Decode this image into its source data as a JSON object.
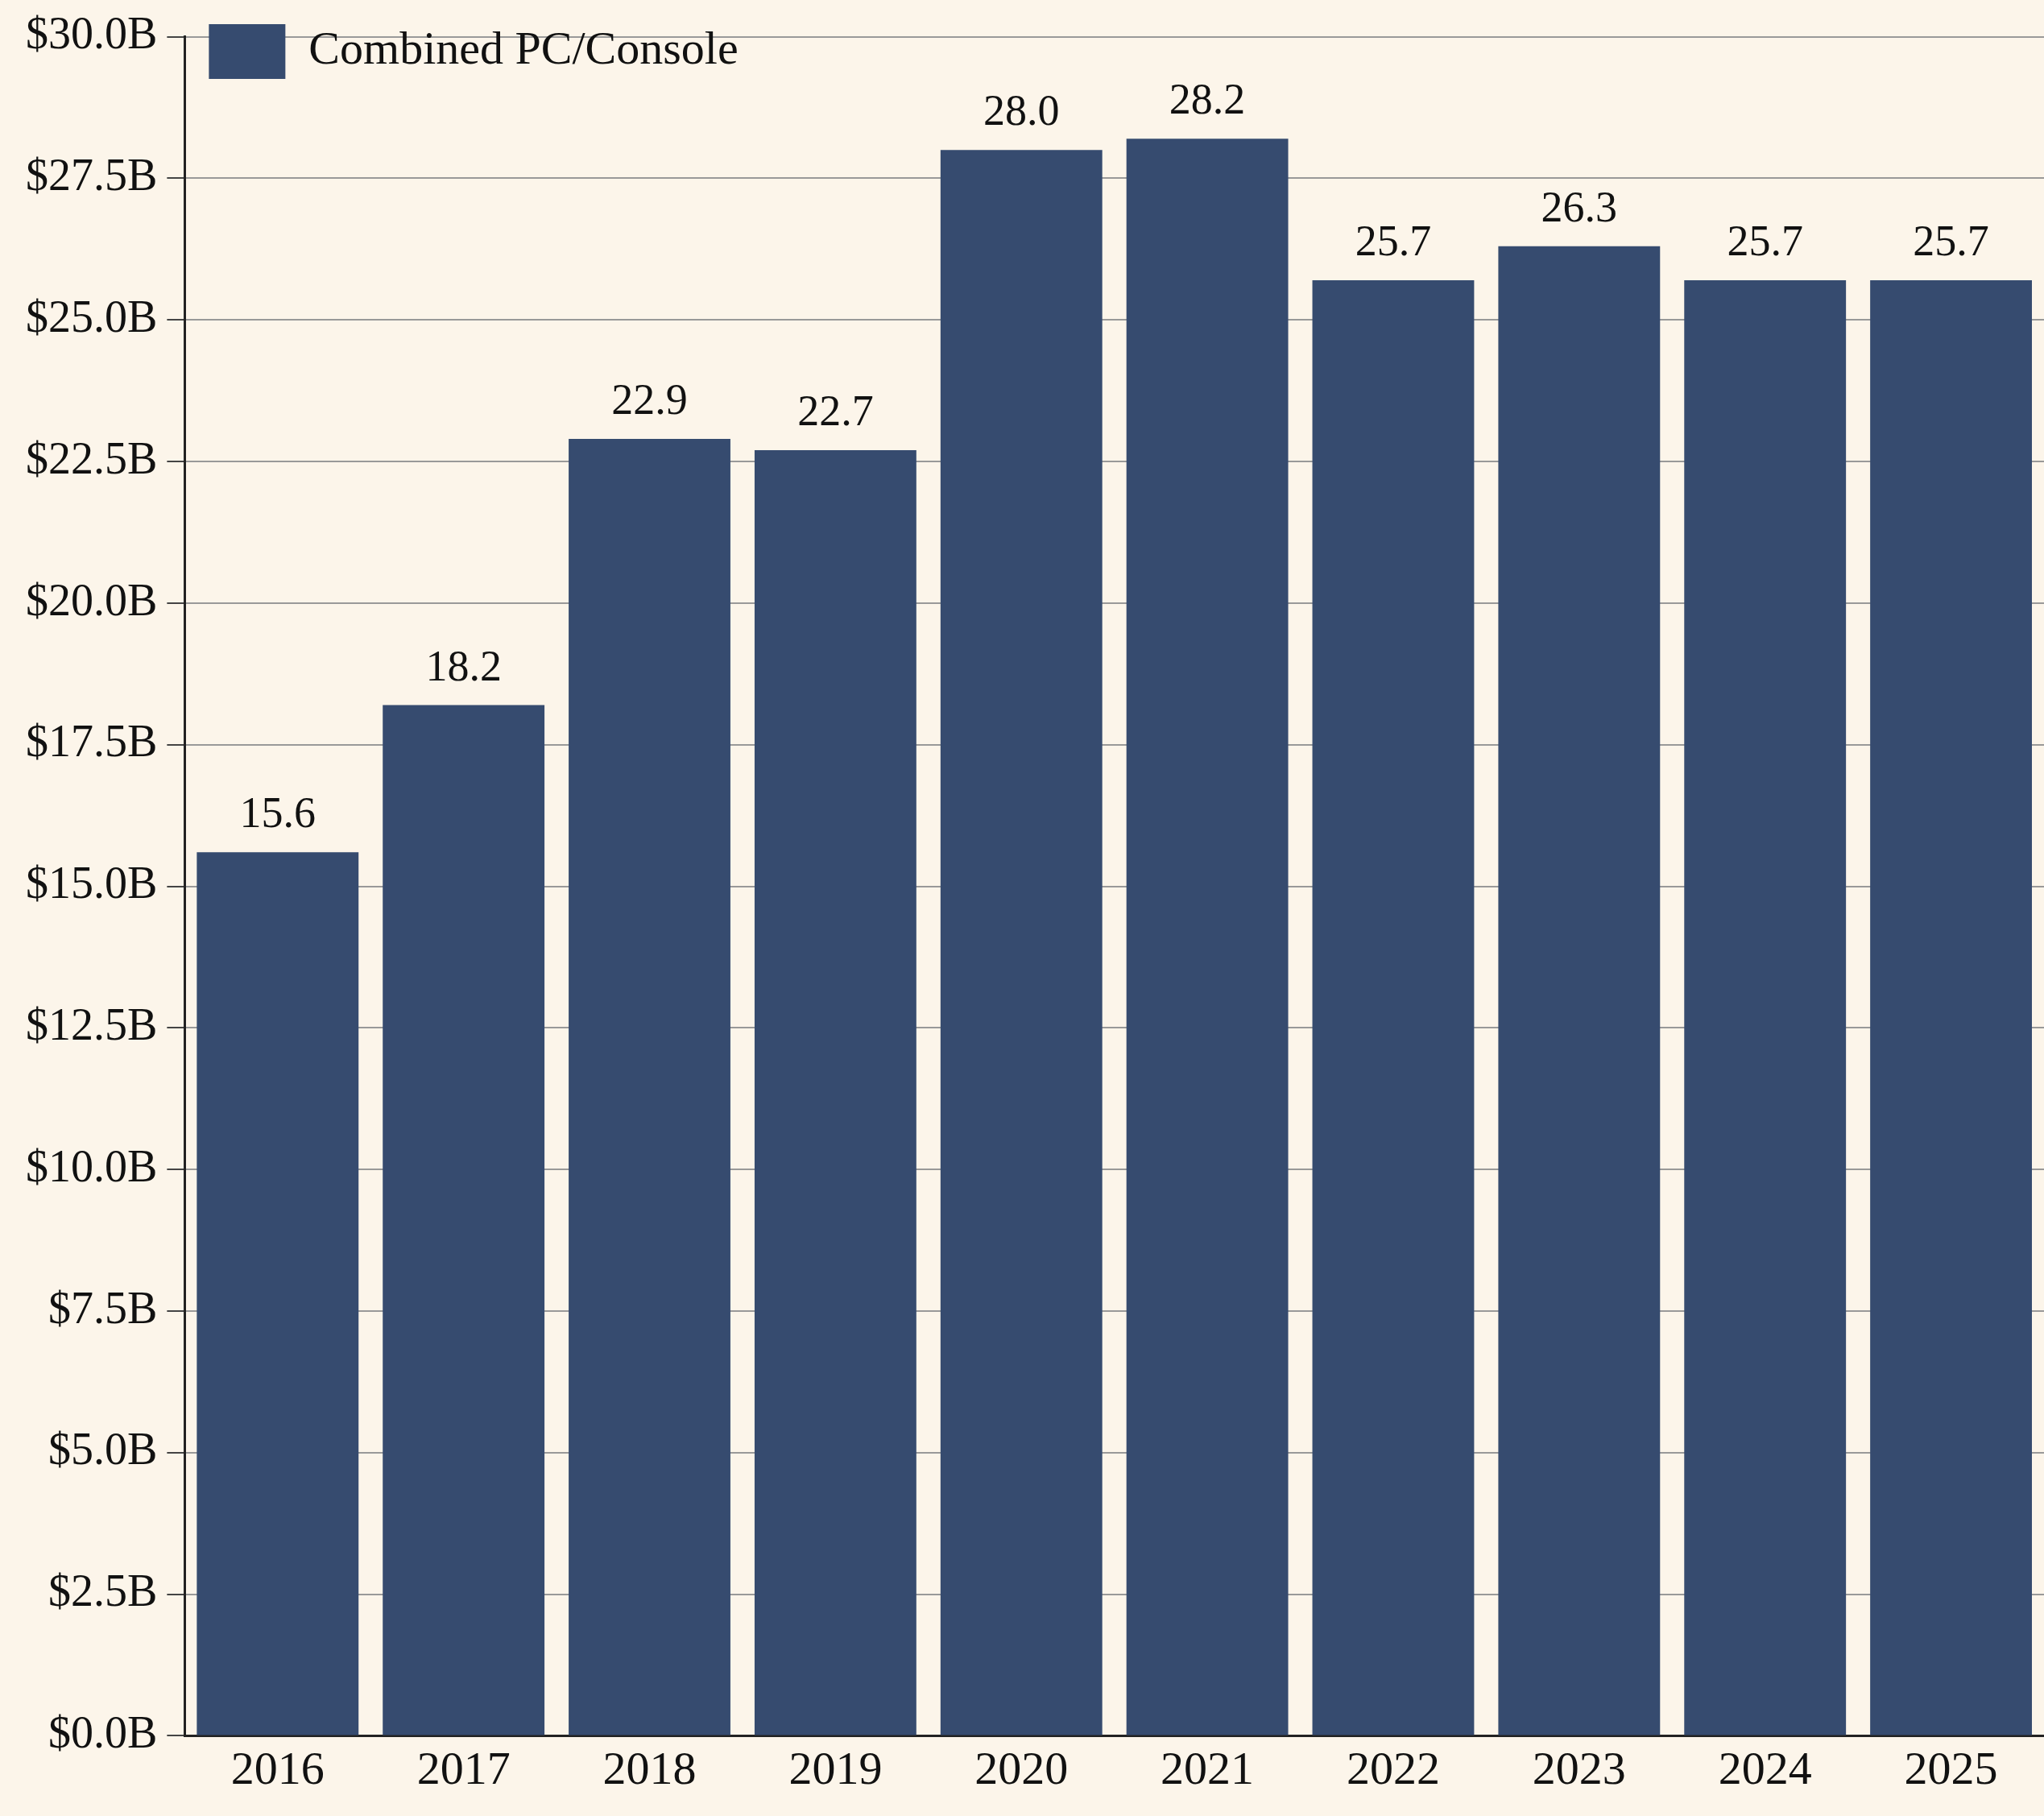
{
  "chart_data": {
    "type": "bar",
    "categories": [
      "2016",
      "2017",
      "2018",
      "2019",
      "2020",
      "2021",
      "2022",
      "2023",
      "2024",
      "2025"
    ],
    "series": [
      {
        "name": "Combined PC/Console",
        "color": "#364b6f",
        "values": [
          15.6,
          18.2,
          22.9,
          22.7,
          28.0,
          28.2,
          25.7,
          26.3,
          25.7,
          25.7
        ],
        "value_labels": [
          "15.6",
          "18.2",
          "22.9",
          "22.7",
          "28.0",
          "28.2",
          "25.7",
          "26.3",
          "25.7",
          "25.7"
        ]
      }
    ],
    "ylim": [
      0,
      30
    ],
    "yticks": [
      {
        "value": 0,
        "label": "$0.0B"
      },
      {
        "value": 2.5,
        "label": "$2.5B"
      },
      {
        "value": 5,
        "label": "$5.0B"
      },
      {
        "value": 7.5,
        "label": "$7.5B"
      },
      {
        "value": 10,
        "label": "$10.0B"
      },
      {
        "value": 12.5,
        "label": "$12.5B"
      },
      {
        "value": 15,
        "label": "$15.0B"
      },
      {
        "value": 17.5,
        "label": "$17.5B"
      },
      {
        "value": 20,
        "label": "$20.0B"
      },
      {
        "value": 22.5,
        "label": "$22.5B"
      },
      {
        "value": 25,
        "label": "$25.0B"
      },
      {
        "value": 27.5,
        "label": "$27.5B"
      },
      {
        "value": 30,
        "label": "$30.0B"
      }
    ],
    "grid": "y",
    "legend": "top left"
  }
}
